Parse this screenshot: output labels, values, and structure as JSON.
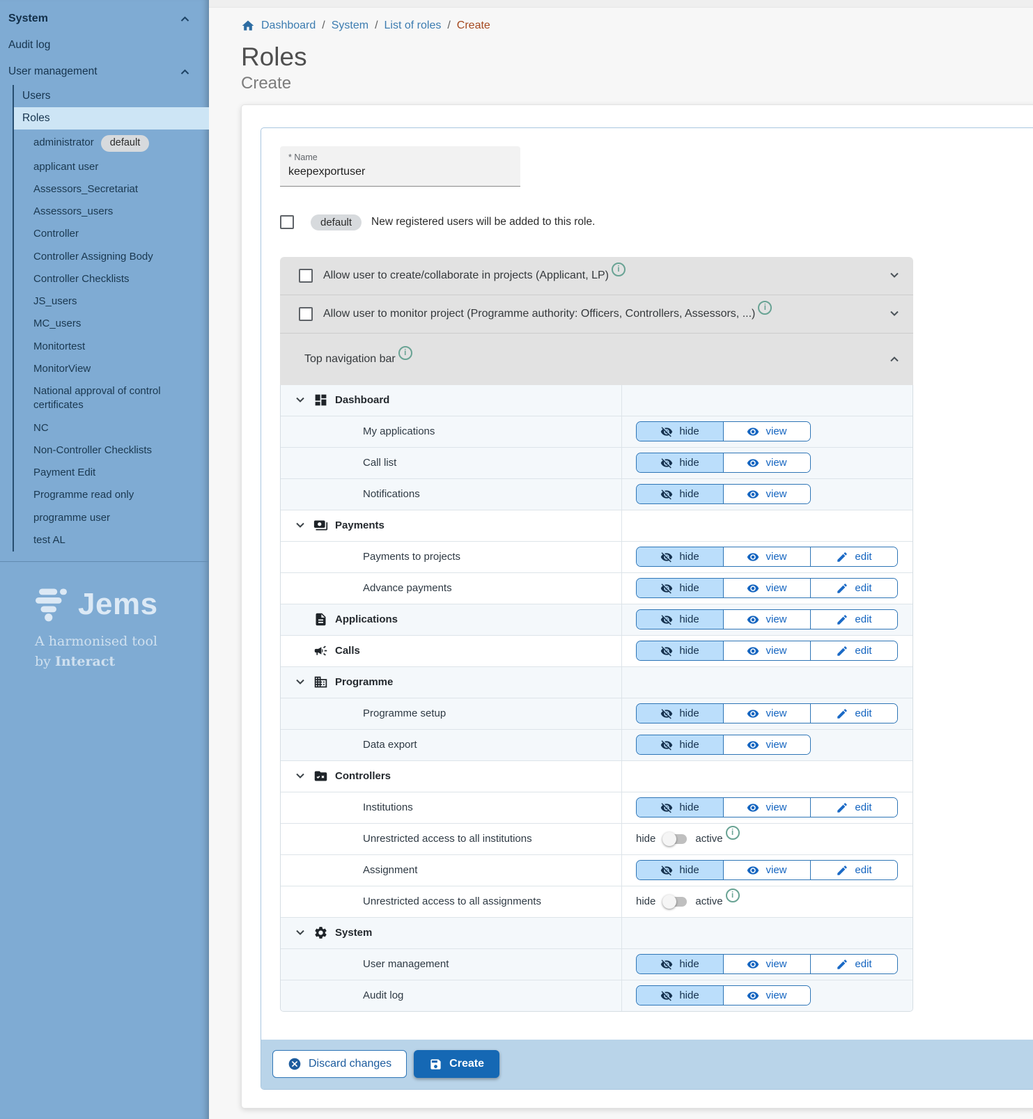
{
  "sidebar": {
    "section_system": "System",
    "audit_log": "Audit log",
    "user_management": "User management",
    "users": "Users",
    "roles": "Roles",
    "roles_list": [
      {
        "label": "administrator",
        "badge": "default"
      },
      {
        "label": "applicant user"
      },
      {
        "label": "Assessors_Secretariat"
      },
      {
        "label": "Assessors_users"
      },
      {
        "label": "Controller"
      },
      {
        "label": "Controller Assigning Body"
      },
      {
        "label": "Controller Checklists"
      },
      {
        "label": "JS_users"
      },
      {
        "label": "MC_users"
      },
      {
        "label": "Monitortest"
      },
      {
        "label": "MonitorView"
      },
      {
        "label": "National approval of control certificates"
      },
      {
        "label": "NC"
      },
      {
        "label": "Non-Controller Checklists"
      },
      {
        "label": "Payment Edit"
      },
      {
        "label": "Programme read only"
      },
      {
        "label": "programme user"
      },
      {
        "label": "test AL"
      }
    ],
    "logo": {
      "name": "Jems",
      "icon": "jems-hive-icon",
      "tagline_line1": "A harmonised tool",
      "tagline_by": "by ",
      "tagline_brand": "Interact"
    }
  },
  "breadcrumb": {
    "home_icon": "home-icon",
    "items": [
      "Dashboard",
      "System",
      "List of roles"
    ],
    "current": "Create",
    "separator": "/"
  },
  "header": {
    "title": "Roles",
    "subtitle": "Create"
  },
  "form": {
    "name_label": "* Name",
    "name_value": "keepexportuser",
    "default_badge": "default",
    "default_hint": "New registered users will be added to this role.",
    "panels": [
      {
        "label": "Allow user to create/collaborate in projects (Applicant, LP)",
        "checkbox": true,
        "expanded": false,
        "info_icon": "info-icon"
      },
      {
        "label": "Allow user to monitor project (Programme authority: Officers, Controllers, Assessors, ...)",
        "checkbox": true,
        "expanded": false,
        "info_icon": "info-icon"
      },
      {
        "label": "Top navigation bar",
        "checkbox": false,
        "expanded": true,
        "info_icon": "info-icon"
      }
    ]
  },
  "permissions": {
    "control_labels": {
      "hide": "hide",
      "view": "view",
      "edit": "edit"
    },
    "control_icons": {
      "hide": "hide-icon",
      "view": "view-icon",
      "edit": "edit-icon"
    },
    "groups": [
      {
        "label": "Dashboard",
        "icon": "dashboard-icon",
        "expandable": true,
        "tinted": true,
        "children": [
          {
            "label": "My applications",
            "type": "buttons",
            "options": [
              "hide",
              "view"
            ],
            "selected": "hide"
          },
          {
            "label": "Call list",
            "type": "buttons",
            "options": [
              "hide",
              "view"
            ],
            "selected": "hide"
          },
          {
            "label": "Notifications",
            "type": "buttons",
            "options": [
              "hide",
              "view"
            ],
            "selected": "hide"
          }
        ]
      },
      {
        "label": "Payments",
        "icon": "payments-icon",
        "expandable": true,
        "tinted": false,
        "children": [
          {
            "label": "Payments to projects",
            "type": "buttons",
            "options": [
              "hide",
              "view",
              "edit"
            ],
            "selected": "hide"
          },
          {
            "label": "Advance payments",
            "type": "buttons",
            "options": [
              "hide",
              "view",
              "edit"
            ],
            "selected": "hide"
          }
        ]
      },
      {
        "label": "Applications",
        "icon": "applications-icon",
        "expandable": false,
        "tinted": true,
        "row": {
          "type": "buttons",
          "options": [
            "hide",
            "view",
            "edit"
          ],
          "selected": "hide"
        },
        "children": []
      },
      {
        "label": "Calls",
        "icon": "calls-icon",
        "expandable": false,
        "tinted": false,
        "row": {
          "type": "buttons",
          "options": [
            "hide",
            "view",
            "edit"
          ],
          "selected": "hide"
        },
        "children": []
      },
      {
        "label": "Programme",
        "icon": "programme-icon",
        "expandable": true,
        "tinted": true,
        "children": [
          {
            "label": "Programme setup",
            "type": "buttons",
            "options": [
              "hide",
              "view",
              "edit"
            ],
            "selected": "hide"
          },
          {
            "label": "Data export",
            "type": "buttons",
            "options": [
              "hide",
              "view"
            ],
            "selected": "hide"
          }
        ]
      },
      {
        "label": "Controllers",
        "icon": "controllers-icon",
        "expandable": true,
        "tinted": false,
        "children": [
          {
            "label": "Institutions",
            "type": "buttons",
            "options": [
              "hide",
              "view",
              "edit"
            ],
            "selected": "hide"
          },
          {
            "label": "Unrestricted access to all institutions",
            "type": "toggle",
            "left": "hide",
            "right": "active",
            "state": "off",
            "info_icon": "info-icon"
          },
          {
            "label": "Assignment",
            "type": "buttons",
            "options": [
              "hide",
              "view",
              "edit"
            ],
            "selected": "hide"
          },
          {
            "label": "Unrestricted access to all assignments",
            "type": "toggle",
            "left": "hide",
            "right": "active",
            "state": "off",
            "info_icon": "info-icon"
          }
        ]
      },
      {
        "label": "System",
        "icon": "system-icon",
        "expandable": true,
        "tinted": true,
        "children": [
          {
            "label": "User management",
            "type": "buttons",
            "options": [
              "hide",
              "view",
              "edit"
            ],
            "selected": "hide"
          },
          {
            "label": "Audit log",
            "type": "buttons",
            "options": [
              "hide",
              "view"
            ],
            "selected": "hide"
          }
        ]
      }
    ]
  },
  "footer": {
    "discard_label": "Discard changes",
    "discard_icon": "cancel-icon",
    "create_label": "Create",
    "create_icon": "save-icon"
  },
  "colors": {
    "sidebar_bg": "#7fabd3",
    "sidebar_selected": "#cde5f5",
    "primary_blue": "#1568b4",
    "segment_selected": "#bbdefb",
    "segment_border": "#2e75b6",
    "footer_bar": "#b9d4e9",
    "panel_gray": "#e2e2e2",
    "breadcrumb_current": "#a5491f",
    "info_icon": "#69a394",
    "row_tint": "#f4f8fb"
  }
}
